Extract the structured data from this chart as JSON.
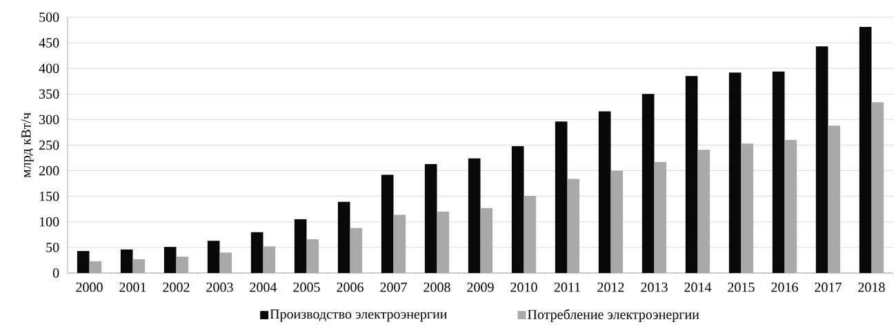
{
  "chart_data": {
    "type": "bar",
    "ylabel": "млрд  кВт/ч",
    "categories": [
      "2000",
      "2001",
      "2002",
      "2003",
      "2004",
      "2005",
      "2006",
      "2007",
      "2008",
      "2009",
      "2010",
      "2011",
      "2012",
      "2013",
      "2014",
      "2015",
      "2016",
      "2017",
      "2018"
    ],
    "series": [
      {
        "name": "Производство электроэнергии",
        "color": "#080808",
        "values": [
          43,
          46,
          51,
          63,
          80,
          105,
          139,
          192,
          213,
          224,
          248,
          296,
          316,
          350,
          385,
          392,
          394,
          443,
          481
        ]
      },
      {
        "name": "Потребление электроэнергии",
        "color": "#a9a9a9",
        "values": [
          23,
          27,
          32,
          40,
          52,
          66,
          88,
          114,
          120,
          127,
          151,
          184,
          200,
          217,
          241,
          253,
          260,
          288,
          334
        ]
      }
    ],
    "ylim": [
      0,
      500
    ],
    "yticks": [
      0,
      50,
      100,
      150,
      200,
      250,
      300,
      350,
      400,
      450,
      500
    ],
    "grid": "y",
    "legend": "bottom"
  }
}
